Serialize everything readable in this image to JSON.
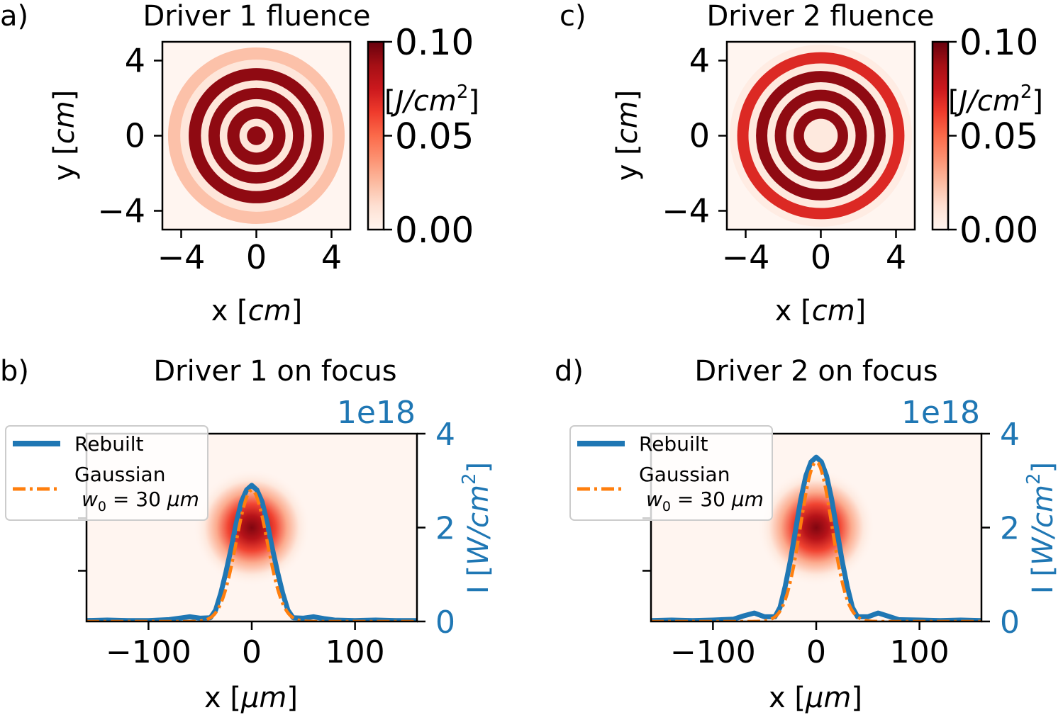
{
  "colors": {
    "axis": "#000000",
    "rebuilt": "#1f77b4",
    "gaussian": "#ff7f0e",
    "ring_dark": "#9b0d16",
    "ring_light": "#fde5d9",
    "background": "#fff5f0",
    "legend_edge": "#cccccc"
  },
  "chart_data": [
    {
      "panel_label": "a)",
      "type": "heatmap",
      "title": "Driver 1 fluence",
      "xlabel": "x [",
      "xlabel_unit": "cm",
      "xlabel_close": "]",
      "ylabel": "y [",
      "ylabel_unit": "cm",
      "ylabel_close": "]",
      "xlim": [
        -5,
        5
      ],
      "ylim": [
        -5,
        5
      ],
      "xticks": [
        -4,
        0,
        4
      ],
      "xtick_labels": [
        "−4",
        "0",
        "4"
      ],
      "yticks": [
        -4,
        0,
        4
      ],
      "ytick_labels": [
        "−4",
        "0",
        "4"
      ],
      "rings": [
        {
          "r_in": 0.0,
          "r_out": 0.5,
          "value": 0.1
        },
        {
          "r_in": 0.5,
          "r_out": 0.9,
          "value": 0.01
        },
        {
          "r_in": 0.9,
          "r_out": 1.55,
          "value": 0.1
        },
        {
          "r_in": 1.55,
          "r_out": 1.95,
          "value": 0.01
        },
        {
          "r_in": 1.95,
          "r_out": 2.55,
          "value": 0.1
        },
        {
          "r_in": 2.55,
          "r_out": 2.95,
          "value": 0.01
        },
        {
          "r_in": 2.95,
          "r_out": 3.6,
          "value": 0.1
        },
        {
          "r_in": 3.6,
          "r_out": 4.05,
          "value": 0.01
        },
        {
          "r_in": 4.05,
          "r_out": 4.7,
          "value": 0.025
        }
      ],
      "colorbar": {
        "label": "[J/cm²]",
        "label_main": "[",
        "label_unit": "J/cm",
        "label_sup": "2",
        "label_close": "]",
        "ticks": [
          0.0,
          0.05,
          0.1
        ],
        "tick_labels": [
          "0.00",
          "0.05",
          "0.10"
        ],
        "range": [
          0.0,
          0.1
        ]
      }
    },
    {
      "panel_label": "c)",
      "type": "heatmap",
      "title": "Driver 2 fluence",
      "xlabel": "x [",
      "xlabel_unit": "cm",
      "xlabel_close": "]",
      "ylabel": "y [",
      "ylabel_unit": "cm",
      "ylabel_close": "]",
      "xlim": [
        -5,
        5
      ],
      "ylim": [
        -5,
        5
      ],
      "xticks": [
        -4,
        0,
        4
      ],
      "xtick_labels": [
        "−4",
        "0",
        "4"
      ],
      "yticks": [
        -4,
        0,
        4
      ],
      "ytick_labels": [
        "−4",
        "0",
        "4"
      ],
      "rings": [
        {
          "r_in": 0.0,
          "r_out": 0.9,
          "value": 0.008
        },
        {
          "r_in": 0.9,
          "r_out": 1.45,
          "value": 0.1
        },
        {
          "r_in": 1.45,
          "r_out": 1.85,
          "value": 0.008
        },
        {
          "r_in": 1.85,
          "r_out": 2.45,
          "value": 0.1
        },
        {
          "r_in": 2.45,
          "r_out": 2.85,
          "value": 0.008
        },
        {
          "r_in": 2.85,
          "r_out": 3.45,
          "value": 0.1
        },
        {
          "r_in": 3.45,
          "r_out": 3.85,
          "value": 0.008
        },
        {
          "r_in": 3.85,
          "r_out": 4.45,
          "value": 0.075
        },
        {
          "r_in": 4.45,
          "r_out": 4.85,
          "value": 0.006
        }
      ],
      "colorbar": {
        "label": "[J/cm²]",
        "label_main": "[",
        "label_unit": "J/cm",
        "label_sup": "2",
        "label_close": "]",
        "ticks": [
          0.0,
          0.05,
          0.1
        ],
        "tick_labels": [
          "0.00",
          "0.05",
          "0.10"
        ],
        "range": [
          0.0,
          0.1
        ]
      }
    },
    {
      "panel_label": "b)",
      "type": "line",
      "title": "Driver 1 on focus",
      "xlabel": "x [",
      "xlabel_unit": "μm",
      "xlabel_close": "]",
      "ylabel": "I [",
      "ylabel_unit": "W/cm",
      "ylabel_sup": "2",
      "ylabel_close": "]",
      "offset_text": "1e18",
      "xlim": [
        -160,
        160
      ],
      "ylim": [
        0,
        4
      ],
      "xticks": [
        -100,
        0,
        100
      ],
      "xtick_labels": [
        "−100",
        "0",
        "100"
      ],
      "yticks": [
        0,
        2,
        4
      ],
      "ytick_labels": [
        "0",
        "2",
        "4"
      ],
      "spot_peak_fraction": 1.0,
      "series": [
        {
          "name": "Rebuilt",
          "style": "solid",
          "x": [
            -160,
            -140,
            -120,
            -100,
            -80,
            -70,
            -60,
            -50,
            -40,
            -35,
            -30,
            -25,
            -20,
            -15,
            -10,
            -5,
            0,
            5,
            10,
            15,
            20,
            25,
            30,
            35,
            40,
            50,
            60,
            70,
            80,
            100,
            120,
            140,
            160
          ],
          "y": [
            0.02,
            0.03,
            0.02,
            0.02,
            0.04,
            0.07,
            0.1,
            0.07,
            0.08,
            0.24,
            0.6,
            1.05,
            1.55,
            2.1,
            2.55,
            2.8,
            2.9,
            2.8,
            2.55,
            2.1,
            1.55,
            1.05,
            0.6,
            0.24,
            0.08,
            0.07,
            0.1,
            0.06,
            0.03,
            0.02,
            0.03,
            0.02,
            0.02
          ]
        },
        {
          "name": "Gaussian",
          "name_line2": "w",
          "name_sub": "0",
          "name_rest": " = 30 ",
          "name_unit": "μm",
          "style": "dashdot",
          "peak": 2.8,
          "w0": 30,
          "x0": 0
        }
      ]
    },
    {
      "panel_label": "d)",
      "type": "line",
      "title": "Driver 2 on focus",
      "xlabel": "x [",
      "xlabel_unit": "μm",
      "xlabel_close": "]",
      "ylabel": "I [",
      "ylabel_unit": "W/cm",
      "ylabel_sup": "2",
      "ylabel_close": "]",
      "offset_text": "1e18",
      "xlim": [
        -160,
        160
      ],
      "ylim": [
        0,
        4
      ],
      "xticks": [
        -100,
        0,
        100
      ],
      "xtick_labels": [
        "−100",
        "0",
        "100"
      ],
      "yticks": [
        0,
        2,
        4
      ],
      "ytick_labels": [
        "0",
        "2",
        "4"
      ],
      "spot_peak_fraction": 1.0,
      "series": [
        {
          "name": "Rebuilt",
          "style": "solid",
          "x": [
            -160,
            -140,
            -120,
            -100,
            -80,
            -70,
            -60,
            -50,
            -40,
            -35,
            -30,
            -25,
            -20,
            -15,
            -10,
            -5,
            0,
            5,
            10,
            15,
            20,
            25,
            30,
            35,
            40,
            50,
            60,
            70,
            80,
            100,
            120,
            140,
            160
          ],
          "y": [
            0.02,
            0.03,
            0.02,
            0.03,
            0.05,
            0.12,
            0.18,
            0.1,
            0.1,
            0.3,
            0.75,
            1.3,
            1.95,
            2.6,
            3.1,
            3.4,
            3.5,
            3.4,
            3.1,
            2.6,
            1.95,
            1.3,
            0.75,
            0.3,
            0.1,
            0.1,
            0.18,
            0.11,
            0.04,
            0.03,
            0.02,
            0.03,
            0.02
          ]
        },
        {
          "name": "Gaussian",
          "name_line2": "w",
          "name_sub": "0",
          "name_rest": " = 30 ",
          "name_unit": "μm",
          "style": "dashdot",
          "peak": 3.4,
          "w0": 30,
          "x0": 0
        }
      ]
    }
  ]
}
